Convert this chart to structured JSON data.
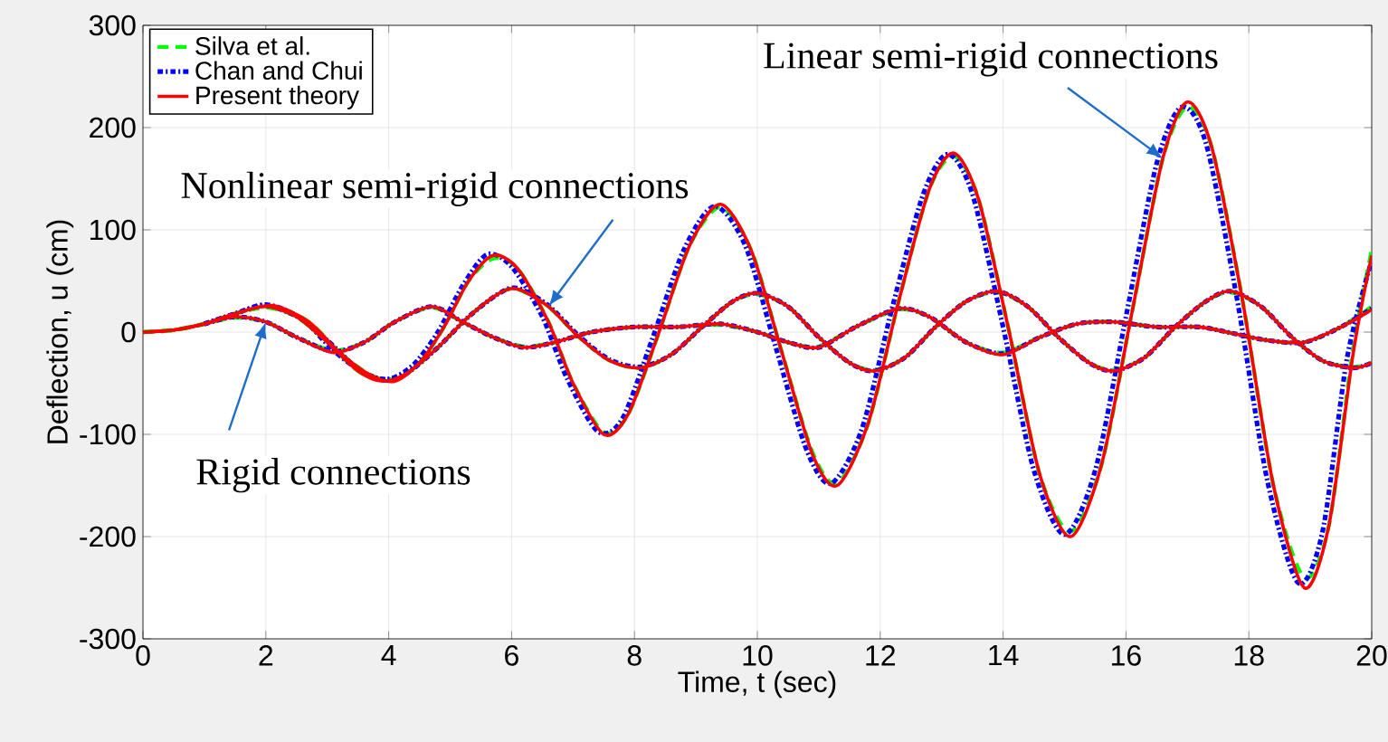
{
  "chart_data": {
    "type": "line",
    "xlabel": "Time, t (sec)",
    "ylabel": "Deflection, u (cm)",
    "xlim": [
      0,
      20
    ],
    "ylim": [
      -300,
      300
    ],
    "xticks": [
      0,
      2,
      4,
      6,
      8,
      10,
      12,
      14,
      16,
      18,
      20
    ],
    "yticks": [
      -300,
      -200,
      -100,
      0,
      100,
      200,
      300
    ],
    "grid": true,
    "legend": "top left",
    "marker": "none",
    "annotations": [
      {
        "text": "Rigid connections",
        "x": 2.0,
        "y": 10
      },
      {
        "text": "Nonlinear semi-rigid connections",
        "x": 6.6,
        "y": 25
      },
      {
        "text": "Linear semi-rigid connections",
        "x": 16.6,
        "y": 170
      }
    ],
    "series": [
      {
        "name": "Silva et al.",
        "color": "#00ff00",
        "line_style": "dashed",
        "x": [
          0,
          0.5,
          1,
          1.5,
          2.1,
          2.7,
          3.2,
          3.7,
          4.1,
          4.5,
          4.9,
          5.3,
          5.7,
          6.1,
          6.6,
          7.0,
          7.5,
          7.9,
          8.4,
          8.9,
          9.4,
          9.9,
          10.4,
          10.9,
          11.3,
          11.8,
          12.3,
          12.8,
          13.2,
          13.6,
          14.1,
          14.6,
          15.1,
          15.6,
          16.1,
          16.6,
          17.0,
          17.4,
          17.9,
          18.4,
          18.9,
          19.3,
          19.7,
          20
        ],
        "values": [
          0,
          2,
          8,
          18,
          25,
          10,
          -20,
          -42,
          -47,
          -30,
          5,
          50,
          72,
          62,
          10,
          -50,
          -98,
          -80,
          0,
          85,
          122,
          80,
          -20,
          -118,
          -148,
          -90,
          30,
          140,
          172,
          130,
          0,
          -140,
          -195,
          -130,
          20,
          170,
          220,
          180,
          30,
          -150,
          -240,
          -190,
          -15,
          80
        ]
      },
      {
        "color": "#00ff00",
        "line_style": "dashed",
        "x": [
          0,
          0.5,
          1,
          1.5,
          2.0,
          2.5,
          3.0,
          3.5,
          3.9,
          4.3,
          4.8,
          5.3,
          5.8,
          6.1,
          6.6,
          7.1,
          7.6,
          8.1,
          8.6,
          9.1,
          9.6,
          10.0,
          10.5,
          11.0,
          11.5,
          11.9,
          12.4,
          12.9,
          13.4,
          13.9,
          14.4,
          14.9,
          15.4,
          15.8,
          16.3,
          16.8,
          17.3,
          17.7,
          18.2,
          18.7,
          19.2,
          19.7,
          20
        ],
        "values": [
          0,
          2,
          8,
          18,
          24,
          15,
          -10,
          -38,
          -47,
          -40,
          -15,
          15,
          38,
          42,
          25,
          -5,
          -28,
          -35,
          -22,
          5,
          30,
          37,
          25,
          -5,
          -30,
          -37,
          -25,
          5,
          30,
          39,
          25,
          -5,
          -30,
          -37,
          -25,
          5,
          30,
          39,
          25,
          -5,
          -28,
          -34,
          -30
        ]
      },
      {
        "color": "#00ff00",
        "line_style": "dashed",
        "x": [
          0,
          0.5,
          1,
          1.5,
          2.0,
          2.5,
          3.1,
          3.6,
          4.1,
          4.7,
          5.2,
          5.7,
          6.2,
          6.7,
          7.3,
          8.0,
          8.7,
          9.4,
          10.0,
          10.5,
          11.0,
          11.6,
          12.3,
          12.8,
          13.4,
          14.0,
          14.6,
          15.2,
          15.8,
          16.5,
          17.2,
          17.8,
          18.3,
          18.9,
          19.5,
          20
        ],
        "values": [
          0,
          2,
          8,
          14,
          10,
          -5,
          -18,
          -10,
          10,
          24,
          10,
          -5,
          -14,
          -10,
          0,
          5,
          5,
          7,
          0,
          -10,
          -14,
          5,
          22,
          15,
          -10,
          -20,
          -5,
          8,
          10,
          5,
          5,
          -2,
          -8,
          -10,
          5,
          25
        ]
      },
      {
        "name": "Chan and Chui",
        "color": "#0000ff",
        "line_style": "dashdotted",
        "x": [
          1,
          1.5,
          2.0,
          2.6,
          3.1,
          3.6,
          4.0,
          4.4,
          4.8,
          5.2,
          5.6,
          6.0,
          6.5,
          6.9,
          7.4,
          7.8,
          8.3,
          8.8,
          9.3,
          9.8,
          10.3,
          10.8,
          11.2,
          11.7,
          12.2,
          12.7,
          13.1,
          13.5,
          14.0,
          14.5,
          15.0,
          15.5,
          16.0,
          16.5,
          16.9,
          17.3,
          17.8,
          18.3,
          18.8,
          19.2,
          19.6,
          20
        ],
        "values": [
          8,
          18,
          26,
          12,
          -18,
          -40,
          -46,
          -32,
          0,
          45,
          76,
          64,
          15,
          -45,
          -97,
          -85,
          -5,
          80,
          123,
          85,
          -15,
          -115,
          -148,
          -95,
          25,
          135,
          174,
          135,
          5,
          -135,
          -198,
          -135,
          15,
          165,
          220,
          185,
          35,
          -145,
          -245,
          -195,
          -25,
          70
        ]
      },
      {
        "color": "#0000ff",
        "line_style": "dashdotted",
        "x": [
          1,
          1.5,
          2.0,
          2.5,
          3.0,
          3.5,
          3.9,
          4.3,
          4.8,
          5.3,
          5.8,
          6.1,
          6.6,
          7.1,
          7.6,
          8.1,
          8.6,
          9.1,
          9.6,
          10.0,
          10.5,
          11.0,
          11.5,
          11.9,
          12.4,
          12.9,
          13.4,
          13.9,
          14.4,
          14.9,
          15.4,
          15.8,
          16.3,
          16.8,
          17.3,
          17.7,
          18.2,
          18.7,
          19.2,
          19.7,
          20
        ],
        "values": [
          8,
          18,
          27,
          16,
          -8,
          -36,
          -46,
          -40,
          -15,
          15,
          38,
          43,
          26,
          -4,
          -27,
          -34,
          -22,
          5,
          30,
          38,
          25,
          -5,
          -30,
          -38,
          -25,
          5,
          30,
          40,
          25,
          -5,
          -30,
          -38,
          -25,
          5,
          30,
          40,
          25,
          -5,
          -28,
          -35,
          -30
        ]
      },
      {
        "color": "#0000ff",
        "line_style": "dashdotted",
        "x": [
          1,
          1.5,
          2.0,
          2.5,
          3.1,
          3.6,
          4.1,
          4.7,
          5.2,
          5.7,
          6.2,
          6.7,
          7.3,
          8.0,
          8.7,
          9.4,
          10.0,
          10.5,
          11.0,
          11.6,
          12.3,
          12.8,
          13.4,
          14.0,
          14.6,
          15.2,
          15.8,
          16.5,
          17.2,
          17.8,
          18.3,
          18.9,
          19.5,
          20
        ],
        "values": [
          8,
          15,
          10,
          -5,
          -19,
          -10,
          10,
          25,
          10,
          -5,
          -15,
          -10,
          0,
          5,
          5,
          8,
          0,
          -10,
          -15,
          5,
          23,
          15,
          -10,
          -21,
          -5,
          8,
          10,
          5,
          5,
          -2,
          -8,
          -10,
          5,
          23
        ]
      },
      {
        "name": "Present theory",
        "color": "#ff0000",
        "line_style": "solid",
        "x": [
          0,
          0.5,
          1,
          1.5,
          2.1,
          2.7,
          3.2,
          3.7,
          4.1,
          4.5,
          4.9,
          5.3,
          5.7,
          6.1,
          6.6,
          7.0,
          7.5,
          7.9,
          8.4,
          8.9,
          9.4,
          9.9,
          10.4,
          10.9,
          11.3,
          11.8,
          12.3,
          12.8,
          13.2,
          13.6,
          14.1,
          14.6,
          15.1,
          15.6,
          16.1,
          16.6,
          17.0,
          17.4,
          17.9,
          18.4,
          18.9,
          19.3,
          19.7,
          20
        ],
        "values": [
          0,
          2,
          8,
          18,
          26,
          10,
          -20,
          -42,
          -48,
          -30,
          5,
          50,
          75,
          62,
          10,
          -50,
          -100,
          -80,
          0,
          85,
          125,
          80,
          -20,
          -120,
          -150,
          -90,
          30,
          140,
          175,
          130,
          0,
          -140,
          -200,
          -130,
          20,
          170,
          225,
          180,
          30,
          -150,
          -250,
          -190,
          -20,
          75
        ]
      },
      {
        "color": "#ff0000",
        "line_style": "solid",
        "x": [
          0,
          0.5,
          1,
          1.5,
          2.0,
          2.5,
          3.0,
          3.5,
          3.9,
          4.3,
          4.8,
          5.3,
          5.8,
          6.1,
          6.6,
          7.1,
          7.6,
          8.1,
          8.6,
          9.1,
          9.6,
          10.0,
          10.5,
          11.0,
          11.5,
          11.9,
          12.4,
          12.9,
          13.4,
          13.9,
          14.4,
          14.9,
          15.4,
          15.8,
          16.3,
          16.8,
          17.3,
          17.7,
          18.2,
          18.7,
          19.2,
          19.7,
          20
        ],
        "values": [
          0,
          2,
          8,
          18,
          25,
          15,
          -10,
          -38,
          -48,
          -40,
          -15,
          15,
          38,
          42,
          25,
          -5,
          -28,
          -35,
          -22,
          5,
          30,
          38,
          25,
          -5,
          -30,
          -38,
          -25,
          5,
          30,
          40,
          25,
          -5,
          -30,
          -38,
          -25,
          5,
          30,
          40,
          25,
          -5,
          -28,
          -35,
          -30
        ]
      },
      {
        "color": "#ff0000",
        "line_style": "solid",
        "x": [
          0,
          0.5,
          1,
          1.5,
          2.0,
          2.5,
          3.1,
          3.6,
          4.1,
          4.7,
          5.2,
          5.7,
          6.2,
          6.7,
          7.3,
          8.0,
          8.7,
          9.4,
          10.0,
          10.5,
          11.0,
          11.6,
          12.3,
          12.8,
          13.4,
          14.0,
          14.6,
          15.2,
          15.8,
          16.5,
          17.2,
          17.8,
          18.3,
          18.9,
          19.5,
          20
        ],
        "values": [
          0,
          2,
          8,
          15,
          10,
          -5,
          -20,
          -10,
          10,
          25,
          10,
          -5,
          -15,
          -10,
          0,
          5,
          5,
          8,
          0,
          -10,
          -15,
          5,
          23,
          15,
          -10,
          -22,
          -5,
          8,
          10,
          5,
          5,
          -2,
          -8,
          -10,
          5,
          22
        ]
      }
    ]
  }
}
